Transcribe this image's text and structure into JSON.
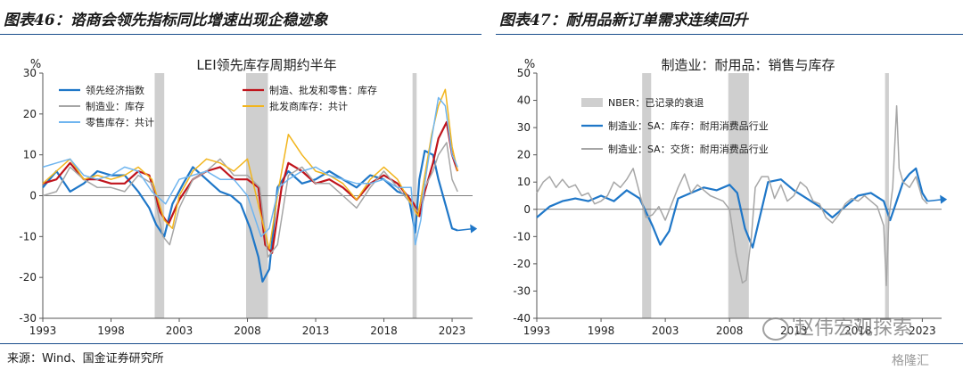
{
  "left": {
    "figure_title": "图表46：谘商会领先指标同比增速出现企稳迹象",
    "chart_title": "LEI领先库存周期约半年",
    "ylabel": "%"
  },
  "right": {
    "figure_title": "图表47：耐用品新订单需求连续回升",
    "chart_title": "制造业：耐用品：销售与库存",
    "ylabel": "%"
  },
  "source": "来源：Wind、国金证券研究所",
  "watermark": "赵伟宏观探索",
  "logo": "格隆汇",
  "colors": {
    "lei": "#1f77c8",
    "mfg_trade": "#c0141c",
    "mfg": "#a6a6a6",
    "wholesale": "#f2b51d",
    "retail": "#6fb5ef",
    "recession": "#cfcfcf",
    "durable_inv": "#1f77c8",
    "durable_ship": "#a6a6a6",
    "rule": "#1a4e8c"
  },
  "chart_data": [
    {
      "type": "line",
      "xlim": [
        1993,
        2024.5
      ],
      "ylim": [
        -30,
        30
      ],
      "xticks": [
        "1993",
        "1998",
        "2003",
        "2008",
        "2013",
        "2018",
        "2023"
      ],
      "yticks": [
        "30",
        "20",
        "10",
        "0",
        "-10",
        "-20",
        "-30"
      ],
      "recessions": [
        [
          2001.2,
          2001.9
        ],
        [
          2007.9,
          2009.5
        ],
        [
          2020.1,
          2020.4
        ]
      ],
      "series": [
        {
          "name": "领先经济指数",
          "color_key": "lei",
          "width": 2.2,
          "x": [
            1993,
            1994,
            1995,
            1996,
            1997,
            1998,
            1999,
            2000,
            2000.8,
            2001.3,
            2001.9,
            2002.5,
            2003.3,
            2004,
            2005,
            2006,
            2006.8,
            2007.5,
            2008.2,
            2008.8,
            2009.1,
            2009.6,
            2010.2,
            2011,
            2012,
            2013,
            2014,
            2015,
            2016,
            2017,
            2018,
            2019,
            2019.8,
            2020.3,
            2020.6,
            2021,
            2021.6,
            2022,
            2022.5,
            2023,
            2023.4
          ],
          "y": [
            2,
            6,
            1,
            3,
            6,
            5,
            5,
            1,
            -3,
            -7,
            -10,
            -2,
            3,
            7,
            4,
            1,
            0,
            -2,
            -8,
            -15,
            -21,
            -18,
            2,
            6,
            3,
            4,
            6,
            4,
            2,
            5,
            4,
            1,
            0,
            -9,
            4,
            11,
            10,
            4,
            -2,
            -8,
            -8.5
          ]
        },
        {
          "name": "制造、批发和零售：库存",
          "color_key": "mfg_trade",
          "width": 2.2,
          "x": [
            1993,
            1994,
            1995,
            1996,
            1997,
            1998,
            1999,
            2000,
            2000.8,
            2001.6,
            2002.2,
            2003,
            2004,
            2005,
            2006,
            2007,
            2008,
            2008.8,
            2009.3,
            2009.8,
            2010.5,
            2011,
            2012,
            2013,
            2014,
            2015,
            2016,
            2017,
            2018,
            2019,
            2020.2,
            2020.6,
            2021,
            2021.6,
            2022,
            2022.6,
            2023,
            2023.4
          ],
          "y": [
            3,
            4,
            8,
            4,
            4,
            3,
            3,
            6,
            5,
            -4,
            -7,
            -1,
            4,
            6,
            7,
            4,
            4,
            2,
            -12,
            -14,
            2,
            8,
            6,
            3,
            4,
            2,
            -1,
            3,
            5,
            3,
            -2,
            -5,
            1,
            8,
            14,
            18,
            10,
            6
          ]
        },
        {
          "name": "制造业：库存",
          "color_key": "mfg",
          "width": 1.5,
          "x": [
            1993,
            1994,
            1995,
            1996,
            1997,
            1998,
            1999,
            2000,
            2001,
            2001.8,
            2002.3,
            2003,
            2004,
            2005,
            2006,
            2007,
            2008,
            2008.9,
            2009.5,
            2010.2,
            2011,
            2012,
            2013,
            2014,
            2015,
            2016,
            2017,
            2018,
            2019,
            2020,
            2020.5,
            2021,
            2021.6,
            2022,
            2022.6,
            2023,
            2023.4
          ],
          "y": [
            0,
            1,
            7,
            4,
            2,
            2,
            1,
            5,
            3,
            -10,
            -12,
            -3,
            4,
            6,
            9,
            5,
            5,
            2,
            -15,
            -12,
            5,
            7,
            3,
            3,
            0,
            -3,
            2,
            6,
            2,
            -2,
            -4,
            2,
            6,
            10,
            13,
            4,
            1
          ]
        },
        {
          "name": "批发商库存：共计",
          "color_key": "wholesale",
          "width": 1.5,
          "x": [
            1993,
            1994,
            1995,
            1996,
            1997,
            1998,
            1999,
            2000,
            2001,
            2001.9,
            2002.5,
            2003,
            2004,
            2005,
            2006,
            2007,
            2008,
            2009,
            2009.6,
            2010.3,
            2011,
            2012,
            2013,
            2014,
            2015,
            2016,
            2017,
            2018,
            2019,
            2020,
            2020.5,
            2021,
            2021.5,
            2022,
            2022.5,
            2023,
            2023.4
          ],
          "y": [
            3,
            6,
            9,
            4,
            5,
            4,
            5,
            7,
            4,
            -6,
            -8,
            0,
            6,
            9,
            8,
            6,
            9,
            -5,
            -13,
            2,
            15,
            10,
            6,
            5,
            3,
            -1,
            4,
            7,
            4,
            -2,
            -5,
            5,
            15,
            22,
            26,
            12,
            6
          ]
        },
        {
          "name": "零售库存：共计",
          "color_key": "retail",
          "width": 1.5,
          "x": [
            1993,
            1994,
            1995,
            1996,
            1997,
            1998,
            1999,
            2000,
            2001,
            2002,
            2003,
            2004,
            2005,
            2006,
            2007,
            2008,
            2009,
            2009.6,
            2010.3,
            2011,
            2012,
            2013,
            2014,
            2015,
            2016,
            2017,
            2018,
            2019,
            2020,
            2020.3,
            2020.7,
            2021,
            2021.5,
            2022,
            2022.5,
            2023,
            2023.4
          ],
          "y": [
            7,
            8,
            9,
            5,
            4,
            5,
            7,
            6,
            1,
            -2,
            4,
            5,
            6,
            4,
            4,
            0,
            -10,
            -8,
            2,
            4,
            6,
            7,
            5,
            4,
            3,
            3,
            4,
            2,
            2,
            -12,
            -6,
            3,
            14,
            24,
            22,
            10,
            7
          ]
        }
      ]
    },
    {
      "type": "line",
      "xlim": [
        1993,
        2024.5
      ],
      "ylim": [
        -40,
        50
      ],
      "xticks": [
        "1993",
        "1998",
        "2003",
        "2008",
        "2013",
        "2018",
        "2023"
      ],
      "yticks": [
        "50",
        "40",
        "30",
        "20",
        "10",
        "0",
        "-10",
        "-20",
        "-30",
        "-40"
      ],
      "recessions": [
        [
          2001.2,
          2001.9
        ],
        [
          2007.9,
          2009.5
        ],
        [
          2020.1,
          2020.4
        ]
      ],
      "series": [
        {
          "name": "NBER：已记录的衰退",
          "color_key": "recession",
          "width": 0,
          "recession_legend": true,
          "x": [],
          "y": []
        },
        {
          "name": "制造业：SA：库存：耐用消费品行业",
          "color_key": "durable_inv",
          "width": 2.2,
          "x": [
            1993,
            1994,
            1995,
            1996,
            1997,
            1998,
            1999,
            2000,
            2001,
            2002,
            2002.6,
            2003.3,
            2004,
            2005,
            2006,
            2007,
            2008,
            2008.6,
            2009.2,
            2009.8,
            2010.3,
            2011,
            2012,
            2013,
            2014,
            2015,
            2016,
            2017,
            2018,
            2019,
            2020,
            2020.5,
            2021,
            2021.5,
            2022,
            2022.5,
            2023,
            2023.4
          ],
          "y": [
            -3,
            1,
            3,
            4,
            3,
            5,
            3,
            7,
            4,
            -6,
            -13,
            -8,
            4,
            6,
            8,
            7,
            9,
            6,
            -7,
            -14,
            -4,
            10,
            11,
            7,
            4,
            1,
            -3,
            1,
            5,
            6,
            3,
            -4,
            3,
            10,
            13,
            15,
            6,
            3
          ]
        },
        {
          "name": "制造业：SA：交货：耐用消费品行业",
          "color_key": "durable_ship",
          "width": 1.5,
          "x": [
            1993,
            1993.5,
            1994,
            1994.5,
            1995,
            1995.5,
            1996,
            1996.5,
            1997,
            1997.5,
            1998,
            1998.5,
            1999,
            1999.5,
            2000,
            2000.5,
            2001,
            2001.5,
            2002,
            2002.5,
            2003,
            2003.5,
            2004,
            2004.5,
            2005,
            2005.5,
            2006,
            2006.5,
            2007,
            2007.5,
            2008,
            2008.5,
            2009,
            2009.3,
            2009.7,
            2010,
            2010.5,
            2011,
            2011.5,
            2012,
            2012.5,
            2013,
            2013.5,
            2014,
            2014.5,
            2015,
            2015.5,
            2016,
            2016.5,
            2017,
            2017.5,
            2018,
            2018.5,
            2019,
            2019.5,
            2020,
            2020.2,
            2020.4,
            2020.7,
            2021,
            2021.2,
            2021.5,
            2022,
            2022.5,
            2023,
            2023.4
          ],
          "y": [
            6,
            10,
            12,
            8,
            11,
            8,
            9,
            5,
            6,
            2,
            3,
            5,
            10,
            8,
            11,
            15,
            6,
            -3,
            -2,
            1,
            -4,
            2,
            8,
            13,
            6,
            9,
            7,
            5,
            4,
            3,
            0,
            -16,
            -27,
            -26,
            -10,
            8,
            12,
            12,
            4,
            9,
            3,
            5,
            10,
            8,
            3,
            2,
            -3,
            -5,
            -2,
            2,
            4,
            3,
            5,
            3,
            1,
            -6,
            -28,
            -3,
            8,
            38,
            15,
            10,
            8,
            12,
            4,
            2
          ]
        }
      ]
    }
  ]
}
